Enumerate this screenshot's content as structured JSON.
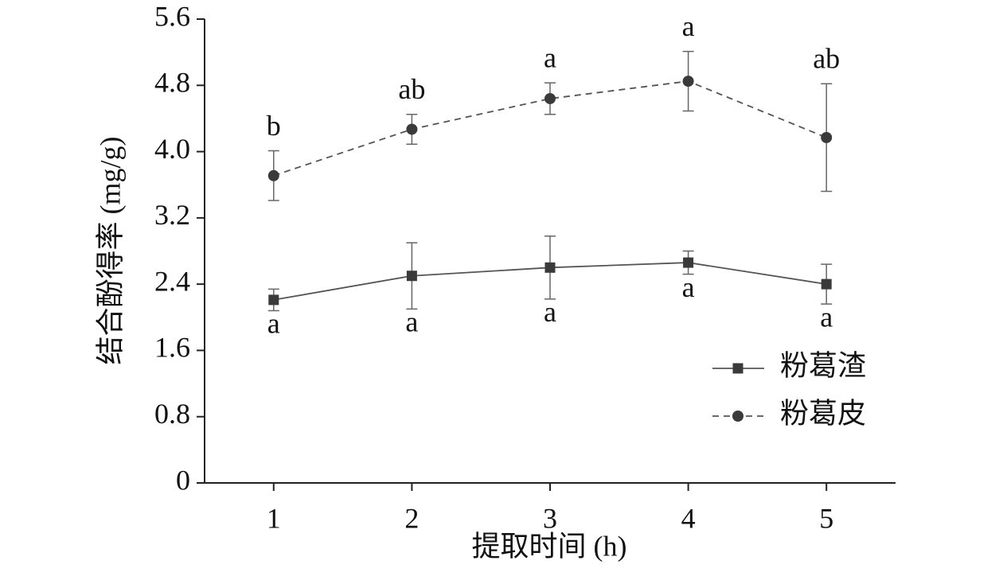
{
  "chart_data": {
    "type": "line",
    "x_label": "提取时间 (h)",
    "y_label": "结合酚得率 (mg/g)",
    "x": [
      1,
      2,
      3,
      4,
      5
    ],
    "xlim": [
      0.5,
      5.5
    ],
    "xticks": [
      1,
      2,
      3,
      4,
      5
    ],
    "ylim": [
      0,
      5.6
    ],
    "yticks": [
      0,
      0.8,
      1.6,
      2.4,
      3.2,
      {
        "value": 4,
        "label": "4.0"
      },
      4.8,
      5.6
    ],
    "legend": "lower right",
    "series": [
      {
        "name": "粉葛渣",
        "color": "#3a3a3a",
        "marker": "square",
        "linestyle": "solid",
        "values": [
          2.21,
          2.5,
          2.6,
          2.66,
          2.4
        ],
        "errors": [
          0.13,
          0.4,
          0.38,
          0.14,
          0.24
        ],
        "labels": [
          "a",
          "a",
          "a",
          "a",
          "a"
        ],
        "label_position": "below"
      },
      {
        "name": "粉葛皮",
        "color": "#3a3a3a",
        "marker": "circle",
        "linestyle": "dashed",
        "values": [
          3.71,
          4.27,
          4.64,
          4.85,
          4.17
        ],
        "errors": [
          0.3,
          0.18,
          0.19,
          0.36,
          0.65
        ],
        "labels": [
          "b",
          "ab",
          "a",
          "a",
          "ab"
        ],
        "label_position": "above"
      }
    ]
  }
}
